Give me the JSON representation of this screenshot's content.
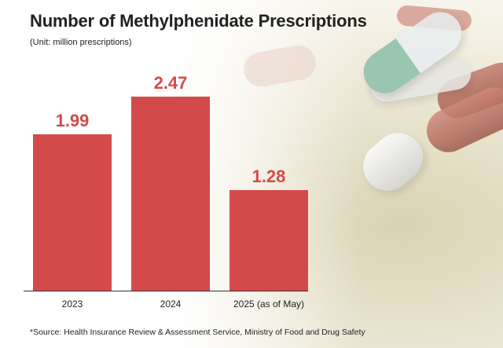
{
  "title": "Number of Methylphenidate Prescriptions",
  "unit_note": "(Unit: million prescriptions)",
  "source": "*Source: Health Insurance Review & Assessment Service, Ministry of Food and Drug Safety",
  "colors": {
    "bar": "#d44a4a",
    "label": "#d44a4a",
    "axis": "#333333"
  },
  "chart_data": {
    "type": "bar",
    "categories": [
      "2023",
      "2024",
      "2025 (as of May)"
    ],
    "values": [
      1.99,
      2.47,
      1.28
    ],
    "value_labels": [
      "1.99",
      "2.47",
      "1.28"
    ],
    "title": "Number of Methylphenidate Prescriptions",
    "ylim": [
      0,
      3.0
    ],
    "grid": false
  }
}
